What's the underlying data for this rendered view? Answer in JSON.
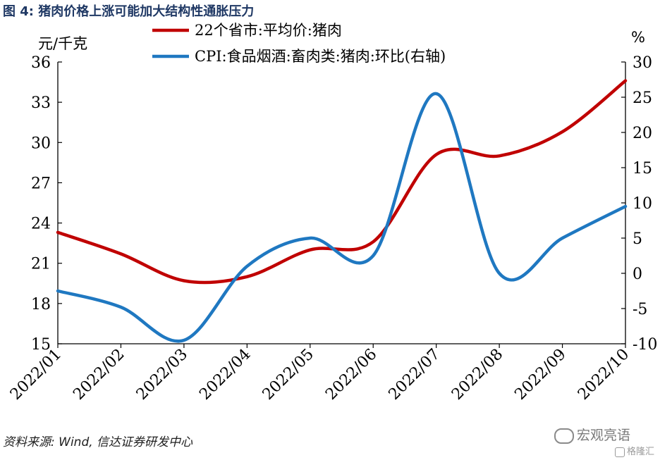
{
  "figure_title": "图  4:  猪肉价格上涨可能加大结构性通胀压力",
  "source_note": "资料来源: Wind,  信达证券研发中心",
  "watermark": {
    "main": "宏观亮语",
    "secondary": "格隆汇",
    "icon": "wechat-icon"
  },
  "chart_data": {
    "type": "line",
    "left_axis": {
      "unit_label": "元/千克",
      "ylim": [
        15,
        36
      ],
      "ticks": [
        "15",
        "18",
        "21",
        "24",
        "27",
        "30",
        "33",
        "36"
      ]
    },
    "right_axis": {
      "unit_label": "%",
      "ylim": [
        -10,
        30
      ],
      "ticks": [
        "-10",
        "-5",
        "0",
        "5",
        "10",
        "15",
        "20",
        "25",
        "30"
      ]
    },
    "categories": [
      "2022/01",
      "2022/02",
      "2022/03",
      "2022/04",
      "2022/05",
      "2022/06",
      "2022/07",
      "2022/08",
      "2022/09",
      "2022/10"
    ],
    "legend_position": "top-center",
    "series": [
      {
        "name": "22个省市:平均价:猪肉",
        "axis": "left",
        "color": "#c00000",
        "values": [
          23.3,
          21.7,
          19.7,
          20.0,
          22.0,
          22.6,
          29.1,
          29.0,
          30.8,
          34.6
        ]
      },
      {
        "name": "CPI:食品烟酒:畜肉类:猪肉:环比(右轴)",
        "axis": "right",
        "color": "#1f78c1",
        "values": [
          -2.5,
          -4.8,
          -9.5,
          1.0,
          5.0,
          2.5,
          25.5,
          0.0,
          5.0,
          9.5
        ]
      }
    ]
  }
}
